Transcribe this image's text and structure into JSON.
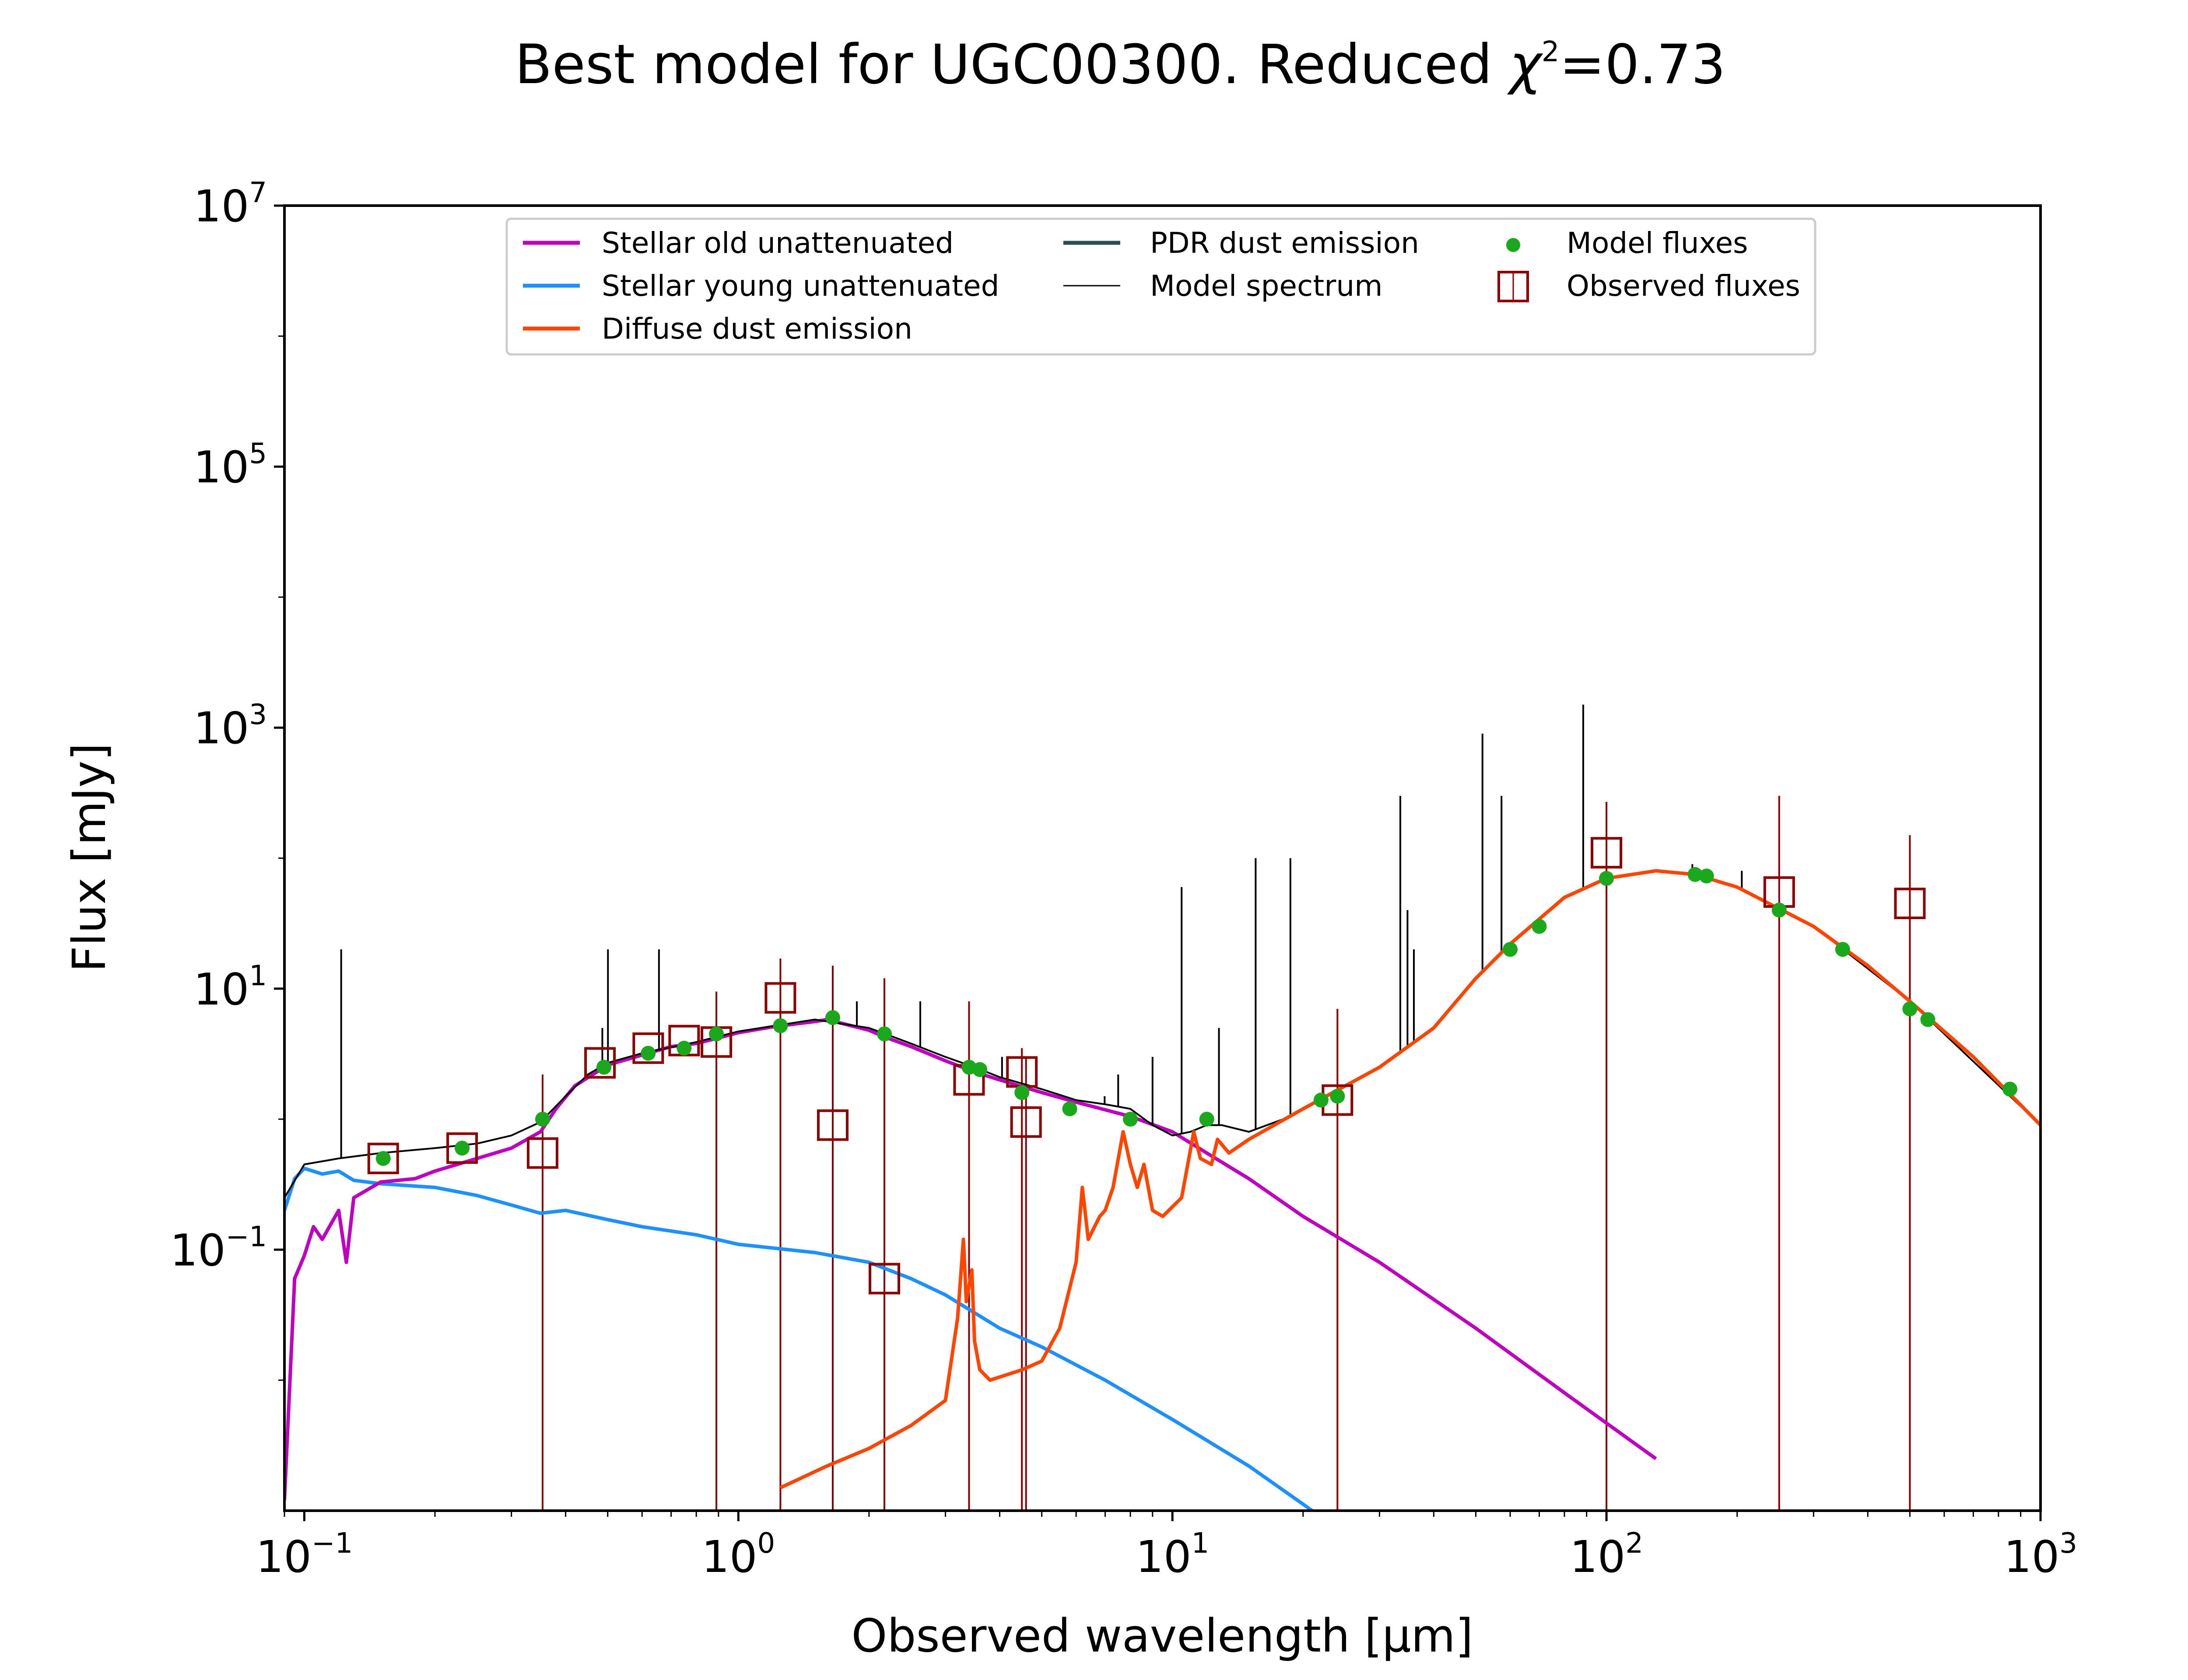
{
  "chart_data": {
    "type": "line",
    "title": "Best model for UGC00300. Reduced χ²=0.73",
    "title_main": "Best model for UGC00300. Reduced ",
    "title_chi": "χ",
    "title_chi_exp": "2",
    "title_value": "=0.73",
    "xlabel": "Observed wavelength [μm]",
    "ylabel": "Flux [mJy]",
    "x_scale": "log",
    "y_scale": "log",
    "xlim": [
      0.09,
      1000
    ],
    "ylim": [
      0.001,
      10000000
    ],
    "x_ticks": [
      {
        "base": "10",
        "exp": "−1",
        "value": 0.1
      },
      {
        "base": "10",
        "exp": "0",
        "value": 1
      },
      {
        "base": "10",
        "exp": "1",
        "value": 10
      },
      {
        "base": "10",
        "exp": "2",
        "value": 100
      },
      {
        "base": "10",
        "exp": "3",
        "value": 1000
      }
    ],
    "y_ticks": [
      {
        "base": "10",
        "exp": "−1",
        "value": 0.1
      },
      {
        "base": "10",
        "exp": "1",
        "value": 10
      },
      {
        "base": "10",
        "exp": "3",
        "value": 1000
      },
      {
        "base": "10",
        "exp": "5",
        "value": 100000
      },
      {
        "base": "10",
        "exp": "7",
        "value": 10000000
      }
    ],
    "grid": false,
    "legend_position": "top-center",
    "legend": [
      {
        "label": "Stellar old unattenuated",
        "kind": "line",
        "color": "#bf00bf"
      },
      {
        "label": "Stellar young unattenuated",
        "kind": "line",
        "color": "#1e90ff"
      },
      {
        "label": "Diffuse dust emission",
        "kind": "line",
        "color": "#ff4500"
      },
      {
        "label": "PDR dust emission",
        "kind": "line",
        "color": "#2f4f4f"
      },
      {
        "label": "Model spectrum",
        "kind": "thin-line",
        "color": "#000000"
      },
      {
        "label": "Model fluxes",
        "kind": "dot",
        "color": "#1ca81c"
      },
      {
        "label": "Observed fluxes",
        "kind": "square",
        "color": "#8b0000"
      }
    ],
    "series": [
      {
        "name": "Stellar old unattenuated",
        "color": "#bf00bf",
        "points": [
          [
            0.09,
            0.0012
          ],
          [
            0.095,
            0.06
          ],
          [
            0.1,
            0.09
          ],
          [
            0.105,
            0.15
          ],
          [
            0.11,
            0.12
          ],
          [
            0.12,
            0.2
          ],
          [
            0.125,
            0.08
          ],
          [
            0.13,
            0.25
          ],
          [
            0.15,
            0.33
          ],
          [
            0.18,
            0.35
          ],
          [
            0.2,
            0.4
          ],
          [
            0.25,
            0.5
          ],
          [
            0.3,
            0.6
          ],
          [
            0.35,
            0.8
          ],
          [
            0.38,
            1.2
          ],
          [
            0.42,
            1.8
          ],
          [
            0.5,
            2.6
          ],
          [
            0.6,
            3.1
          ],
          [
            0.7,
            3.6
          ],
          [
            0.8,
            3.8
          ],
          [
            0.9,
            4.2
          ],
          [
            1.0,
            4.6
          ],
          [
            1.2,
            5.1
          ],
          [
            1.5,
            5.6
          ],
          [
            1.6,
            5.8
          ],
          [
            2.0,
            4.8
          ],
          [
            2.2,
            4.2
          ],
          [
            2.5,
            3.6
          ],
          [
            3.0,
            2.8
          ],
          [
            3.5,
            2.3
          ],
          [
            4.0,
            2.0
          ],
          [
            5.0,
            1.6
          ],
          [
            6.0,
            1.35
          ],
          [
            8.0,
            1.05
          ],
          [
            10.0,
            0.8
          ],
          [
            12.0,
            0.55
          ],
          [
            15.0,
            0.35
          ],
          [
            20.0,
            0.18
          ],
          [
            30.0,
            0.08
          ],
          [
            50.0,
            0.025
          ],
          [
            80.0,
            0.008
          ],
          [
            130.0,
            0.0025
          ]
        ]
      },
      {
        "name": "Stellar young unattenuated",
        "color": "#1e90ff",
        "points": [
          [
            0.09,
            0.2
          ],
          [
            0.095,
            0.35
          ],
          [
            0.1,
            0.42
          ],
          [
            0.11,
            0.38
          ],
          [
            0.12,
            0.4
          ],
          [
            0.13,
            0.34
          ],
          [
            0.15,
            0.32
          ],
          [
            0.2,
            0.3
          ],
          [
            0.25,
            0.26
          ],
          [
            0.3,
            0.22
          ],
          [
            0.35,
            0.19
          ],
          [
            0.4,
            0.2
          ],
          [
            0.5,
            0.17
          ],
          [
            0.6,
            0.15
          ],
          [
            0.8,
            0.13
          ],
          [
            1.0,
            0.11
          ],
          [
            1.5,
            0.095
          ],
          [
            2.0,
            0.08
          ],
          [
            2.5,
            0.06
          ],
          [
            3.0,
            0.045
          ],
          [
            4.0,
            0.025
          ],
          [
            5.0,
            0.018
          ],
          [
            7.0,
            0.01
          ],
          [
            10.0,
            0.005
          ],
          [
            15.0,
            0.0022
          ],
          [
            21.0,
            0.001
          ]
        ]
      },
      {
        "name": "Diffuse dust emission",
        "color": "#ff4500",
        "points": [
          [
            1.25,
            0.0015
          ],
          [
            1.6,
            0.0022
          ],
          [
            2.0,
            0.003
          ],
          [
            2.5,
            0.0045
          ],
          [
            3.0,
            0.007
          ],
          [
            3.2,
            0.03
          ],
          [
            3.3,
            0.12
          ],
          [
            3.35,
            0.04
          ],
          [
            3.45,
            0.07
          ],
          [
            3.5,
            0.02
          ],
          [
            3.6,
            0.012
          ],
          [
            3.8,
            0.01
          ],
          [
            4.5,
            0.012
          ],
          [
            5.0,
            0.014
          ],
          [
            5.5,
            0.025
          ],
          [
            6.0,
            0.08
          ],
          [
            6.2,
            0.3
          ],
          [
            6.4,
            0.12
          ],
          [
            6.8,
            0.18
          ],
          [
            7.0,
            0.2
          ],
          [
            7.3,
            0.3
          ],
          [
            7.7,
            0.8
          ],
          [
            8.0,
            0.45
          ],
          [
            8.3,
            0.3
          ],
          [
            8.6,
            0.45
          ],
          [
            9.0,
            0.2
          ],
          [
            9.5,
            0.18
          ],
          [
            10.5,
            0.25
          ],
          [
            11.2,
            0.8
          ],
          [
            11.6,
            0.5
          ],
          [
            12.3,
            0.45
          ],
          [
            12.7,
            0.7
          ],
          [
            13.5,
            0.55
          ],
          [
            15.0,
            0.7
          ],
          [
            20.0,
            1.2
          ],
          [
            30.0,
            2.5
          ],
          [
            40.0,
            5.0
          ],
          [
            50.0,
            12.0
          ],
          [
            60.0,
            22.0
          ],
          [
            80.0,
            50.0
          ],
          [
            100.0,
            70.0
          ],
          [
            130.0,
            80.0
          ],
          [
            160.0,
            75.0
          ],
          [
            200.0,
            60.0
          ],
          [
            300.0,
            30.0
          ],
          [
            400.0,
            15.0
          ],
          [
            500.0,
            8.0
          ],
          [
            700.0,
            3.0
          ],
          [
            1000.0,
            0.9
          ]
        ]
      },
      {
        "name": "Model spectrum",
        "color": "#000000",
        "points": [
          [
            0.09,
            0.25
          ],
          [
            0.1,
            0.45
          ],
          [
            0.12,
            0.5
          ],
          [
            0.15,
            0.55
          ],
          [
            0.2,
            0.6
          ],
          [
            0.25,
            0.65
          ],
          [
            0.3,
            0.75
          ],
          [
            0.35,
            0.95
          ],
          [
            0.4,
            1.5
          ],
          [
            0.45,
            2.2
          ],
          [
            0.5,
            2.7
          ],
          [
            0.6,
            3.2
          ],
          [
            0.8,
            3.9
          ],
          [
            1.0,
            4.7
          ],
          [
            1.5,
            5.8
          ],
          [
            2.0,
            5.0
          ],
          [
            2.5,
            3.8
          ],
          [
            3.0,
            3.0
          ],
          [
            3.5,
            2.5
          ],
          [
            4.0,
            2.1
          ],
          [
            5.0,
            1.7
          ],
          [
            6.0,
            1.4
          ],
          [
            7.0,
            1.3
          ],
          [
            8.0,
            1.2
          ],
          [
            9.0,
            0.9
          ],
          [
            10.0,
            0.75
          ],
          [
            11.0,
            0.8
          ],
          [
            12.0,
            0.9
          ],
          [
            13.0,
            0.9
          ],
          [
            15.0,
            0.8
          ],
          [
            18.0,
            1.0
          ],
          [
            20.0,
            1.2
          ],
          [
            30.0,
            2.5
          ],
          [
            40.0,
            5.0
          ],
          [
            50.0,
            12.0
          ],
          [
            60.0,
            22.0
          ],
          [
            80.0,
            50.0
          ],
          [
            100.0,
            70.0
          ],
          [
            130.0,
            80.0
          ],
          [
            160.0,
            75.0
          ],
          [
            200.0,
            60.0
          ],
          [
            300.0,
            30.0
          ],
          [
            500.0,
            8.0
          ],
          [
            1000.0,
            0.9
          ]
        ],
        "emission_lines": [
          [
            0.1216,
            20
          ],
          [
            0.486,
            5
          ],
          [
            0.5007,
            20
          ],
          [
            0.6563,
            20
          ],
          [
            1.875,
            8
          ],
          [
            2.625,
            8
          ],
          [
            4.05,
            3
          ],
          [
            6.98,
            1.5
          ],
          [
            7.5,
            2.2
          ],
          [
            9.0,
            3
          ],
          [
            10.5,
            60
          ],
          [
            12.8,
            5
          ],
          [
            15.55,
            100
          ],
          [
            18.7,
            100
          ],
          [
            33.5,
            300
          ],
          [
            34.8,
            40
          ],
          [
            36.0,
            20
          ],
          [
            51.8,
            900
          ],
          [
            57.3,
            300
          ],
          [
            88.4,
            1500
          ],
          [
            157.7,
            90
          ],
          [
            205.0,
            80
          ]
        ]
      }
    ],
    "model_fluxes": {
      "name": "Model fluxes",
      "color": "#1ca81c",
      "points": [
        [
          0.152,
          0.5
        ],
        [
          0.231,
          0.6
        ],
        [
          0.354,
          1.0
        ],
        [
          0.49,
          2.5
        ],
        [
          0.62,
          3.2
        ],
        [
          0.75,
          3.5
        ],
        [
          0.89,
          4.5
        ],
        [
          1.25,
          5.2
        ],
        [
          1.65,
          6.0
        ],
        [
          2.17,
          4.5
        ],
        [
          3.4,
          2.5
        ],
        [
          3.6,
          2.4
        ],
        [
          4.5,
          1.6
        ],
        [
          5.8,
          1.2
        ],
        [
          8.0,
          1.0
        ],
        [
          12.0,
          1.0
        ],
        [
          22.0,
          1.4
        ],
        [
          24.0,
          1.5
        ],
        [
          60.0,
          20.0
        ],
        [
          70.0,
          30.0
        ],
        [
          100.0,
          70.0
        ],
        [
          160.0,
          75.0
        ],
        [
          170.0,
          73.0
        ],
        [
          250.0,
          40.0
        ],
        [
          350.0,
          20.0
        ],
        [
          500.0,
          7.0
        ],
        [
          550.0,
          5.8
        ],
        [
          850.0,
          1.7
        ]
      ]
    },
    "observed_fluxes": {
      "name": "Observed fluxes",
      "color": "#8b0000",
      "points": [
        {
          "x": 0.152,
          "y": 0.5
        },
        {
          "x": 0.231,
          "y": 0.6
        },
        {
          "x": 0.354,
          "y": 0.55,
          "err": 2.2
        },
        {
          "x": 0.48,
          "y": 2.7
        },
        {
          "x": 0.62,
          "y": 3.5
        },
        {
          "x": 0.75,
          "y": 4.0
        },
        {
          "x": 0.89,
          "y": 3.9,
          "err": 9.5
        },
        {
          "x": 1.25,
          "y": 8.5,
          "err": 17
        },
        {
          "x": 1.65,
          "y": 0.9,
          "err": 15
        },
        {
          "x": 2.17,
          "y": 0.06,
          "err": 12
        },
        {
          "x": 3.4,
          "y": 2.0,
          "err": 8
        },
        {
          "x": 4.5,
          "y": 2.3,
          "err": 3.5
        },
        {
          "x": 4.6,
          "y": 0.95,
          "err": 3
        },
        {
          "x": 24.0,
          "y": 1.4,
          "err": 7
        },
        {
          "x": 100.0,
          "y": 110.0,
          "err": 270
        },
        {
          "x": 250.0,
          "y": 55.0,
          "err": 300
        },
        {
          "x": 500.0,
          "y": 45.0,
          "err": 150
        }
      ]
    }
  }
}
